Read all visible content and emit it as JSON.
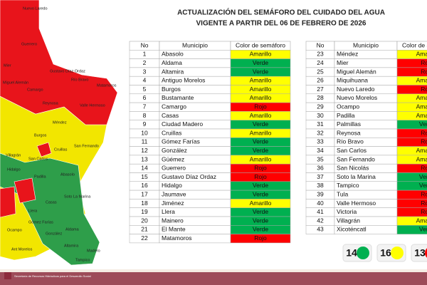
{
  "header": {
    "title_line1": "ACTUALIZACIÓN DEL SEMÁFORO DEL CUIDADO DEL AGUA",
    "title_line2": "VIGENTE A PARTIR DEL 06 DE FEBRERO DE 2026"
  },
  "table": {
    "columns": [
      "No",
      "Municipio",
      "Color de semáforo"
    ],
    "rows": [
      [
        "1",
        "Abasolo",
        "Amarillo"
      ],
      [
        "2",
        "Aldama",
        "Verde"
      ],
      [
        "3",
        "Altamira",
        "Verde"
      ],
      [
        "4",
        "Antiguo Morelos",
        "Amarillo"
      ],
      [
        "5",
        "Burgos",
        "Amarillo"
      ],
      [
        "6",
        "Bustamante",
        "Amarillo"
      ],
      [
        "7",
        "Camargo",
        "Rojo"
      ],
      [
        "8",
        "Casas",
        "Amarillo"
      ],
      [
        "9",
        "Ciudad Madero",
        "Verde"
      ],
      [
        "10",
        "Cruillas",
        "Amarillo"
      ],
      [
        "11",
        "Gómez Farías",
        "Verde"
      ],
      [
        "12",
        "González",
        "Verde"
      ],
      [
        "13",
        "Güémez",
        "Amarillo"
      ],
      [
        "14",
        "Guerrero",
        "Rojo"
      ],
      [
        "15",
        "Gustavo Díaz Ordaz",
        "Rojo"
      ],
      [
        "16",
        "Hidalgo",
        "Verde"
      ],
      [
        "17",
        "Jaumave",
        "Verde"
      ],
      [
        "18",
        "Jiménez",
        "Amarillo"
      ],
      [
        "19",
        "Llera",
        "Verde"
      ],
      [
        "20",
        "Mainero",
        "Verde"
      ],
      [
        "21",
        "El Mante",
        "Verde"
      ],
      [
        "22",
        "Matamoros",
        "Rojo"
      ],
      [
        "23",
        "Méndez",
        "Amarillo"
      ],
      [
        "24",
        "Mier",
        "Rojo"
      ],
      [
        "25",
        "Miguel Alemán",
        "Rojo"
      ],
      [
        "26",
        "Miquihuana",
        "Amarillo"
      ],
      [
        "27",
        "Nuevo Laredo",
        "Rojo"
      ],
      [
        "28",
        "Nuevo Morelos",
        "Amarillo"
      ],
      [
        "29",
        "Ocampo",
        "Amarillo"
      ],
      [
        "30",
        "Padilla",
        "Amarillo"
      ],
      [
        "31",
        "Palmillas",
        "Verde"
      ],
      [
        "32",
        "Reynosa",
        "Rojo"
      ],
      [
        "33",
        "Río Bravo",
        "Rojo"
      ],
      [
        "34",
        "San Carlos",
        "Amarillo"
      ],
      [
        "35",
        "San Fernando",
        "Amarillo"
      ],
      [
        "36",
        "San Nicolás",
        "Rojo"
      ],
      [
        "37",
        "Soto la Marina",
        "Verde"
      ],
      [
        "38",
        "Tampico",
        "Verde"
      ],
      [
        "39",
        "Tula",
        "Rojo"
      ],
      [
        "40",
        "Valle Hermoso",
        "Rojo"
      ],
      [
        "41",
        "Victoria",
        "Rojo"
      ],
      [
        "42",
        "Villagrán",
        "Amarillo"
      ],
      [
        "43",
        "Xicoténcatl",
        "Verde"
      ]
    ]
  },
  "status_colors": {
    "Amarillo": "#ffff00",
    "Verde": "#00b050",
    "Rojo": "#ff0000"
  },
  "summary": [
    {
      "count": "14",
      "color": "#00b050"
    },
    {
      "count": "16",
      "color": "#ffff00"
    },
    {
      "count": "13",
      "color": "#ff0000"
    }
  ],
  "map": {
    "labels": [
      "Nuevo Laredo",
      "Guerrero",
      "Mier",
      "Gustavo Díaz Ordaz",
      "Río Bravo",
      "Miguel Alemán",
      "Camargo",
      "Matamoros",
      "Reynosa",
      "Valle Hermoso",
      "Méndez",
      "Burgos",
      "San Fernando",
      "Cruillas",
      "Villagrán",
      "San Carlos",
      "Hidalgo",
      "Padilla",
      "Abasolo",
      "Soto La Marina",
      "Casas",
      "Llera",
      "Ocampo",
      "Gómez Farías",
      "Aldama",
      "González",
      "Ant Morelos",
      "Altamira",
      "Madero",
      "Tampico"
    ]
  },
  "footer": {
    "logo_text": "Secretaría de Recursos Hidráulicos para el Desarrollo Social"
  }
}
